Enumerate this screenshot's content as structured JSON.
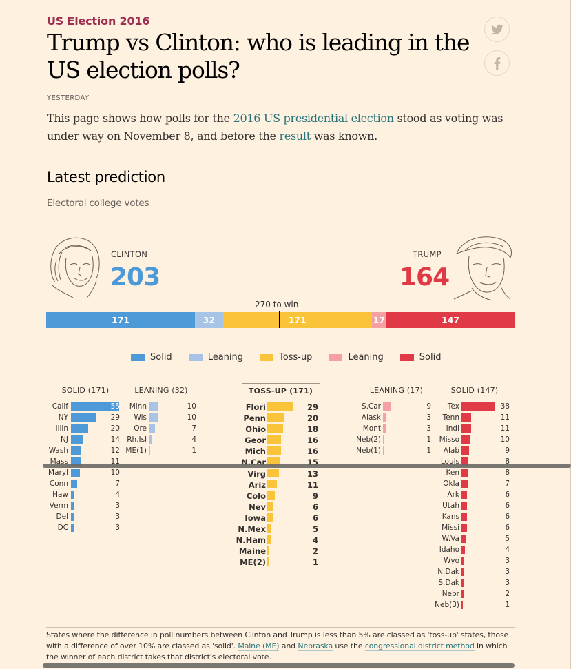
{
  "header": {
    "kicker": "US Election 2016",
    "headline": "Trump vs Clinton: who is leading in the US election polls?",
    "dateline": "YESTERDAY",
    "standfirst": {
      "part1": "This page shows how polls for the ",
      "link1": "2016 US presidential election",
      "part2": " stood as voting was under way on November 8, and before the ",
      "link2": "result",
      "part3": " was known."
    }
  },
  "social": {
    "icons": [
      "twitter-icon",
      "facebook-icon"
    ]
  },
  "section": {
    "title": "Latest prediction",
    "subtitle": "Electoral college votes"
  },
  "candidates": {
    "clinton": {
      "name": "CLINTON",
      "votes": "203",
      "color": "#4e9ad8"
    },
    "trump": {
      "name": "TRUMP",
      "votes": "164",
      "color": "#e03a46"
    }
  },
  "threshold": {
    "label": "270 to win",
    "value": 270,
    "total": 538
  },
  "bar_segments": [
    {
      "label": "171",
      "value": 171,
      "color": "#4e9ad8"
    },
    {
      "label": "32",
      "value": 32,
      "color": "#a7c4e6"
    },
    {
      "label": "171",
      "value": 171,
      "color": "#f9c33a"
    },
    {
      "label": "17",
      "value": 17,
      "color": "#f5a1a3"
    },
    {
      "label": "147",
      "value": 147,
      "color": "#e03a46"
    }
  ],
  "legend": [
    {
      "label": "Solid",
      "color": "#4e9ad8"
    },
    {
      "label": "Leaning",
      "color": "#a7c4e6"
    },
    {
      "label": "Toss-up",
      "color": "#f9c33a"
    },
    {
      "label": "Leaning",
      "color": "#f5a1a3"
    },
    {
      "label": "Solid",
      "color": "#e03a46"
    }
  ],
  "columns": {
    "clinton_solid": {
      "header": "SOLID (171)",
      "color": "#4e9ad8",
      "rows": [
        {
          "state": "Calif",
          "votes": 55
        },
        {
          "state": "NY",
          "votes": 29
        },
        {
          "state": "Illin",
          "votes": 20
        },
        {
          "state": "NJ",
          "votes": 14
        },
        {
          "state": "Wash",
          "votes": 12
        },
        {
          "state": "Mass",
          "votes": 11
        },
        {
          "state": "Maryl",
          "votes": 10
        },
        {
          "state": "Conn",
          "votes": 7
        },
        {
          "state": "Haw",
          "votes": 4
        },
        {
          "state": "Verm",
          "votes": 3
        },
        {
          "state": "Del",
          "votes": 3
        },
        {
          "state": "DC",
          "votes": 3
        }
      ]
    },
    "clinton_leaning": {
      "header": "LEANING (32)",
      "color": "#a7c4e6",
      "rows": [
        {
          "state": "Minn",
          "votes": 10
        },
        {
          "state": "Wis",
          "votes": 10
        },
        {
          "state": "Ore",
          "votes": 7
        },
        {
          "state": "Rh.Isl",
          "votes": 4
        },
        {
          "state": "ME(1)",
          "votes": 1
        }
      ]
    },
    "tossup": {
      "header": "TOSS-UP (171)",
      "color": "#f9c33a",
      "rows": [
        {
          "state": "Flori",
          "votes": 29
        },
        {
          "state": "Penn",
          "votes": 20
        },
        {
          "state": "Ohio",
          "votes": 18
        },
        {
          "state": "Geor",
          "votes": 16
        },
        {
          "state": "Mich",
          "votes": 16
        },
        {
          "state": "N.Car",
          "votes": 15
        },
        {
          "state": "Virg",
          "votes": 13
        },
        {
          "state": "Ariz",
          "votes": 11
        },
        {
          "state": "Colo",
          "votes": 9
        },
        {
          "state": "Nev",
          "votes": 6
        },
        {
          "state": "Iowa",
          "votes": 6
        },
        {
          "state": "N.Mex",
          "votes": 5
        },
        {
          "state": "N.Ham",
          "votes": 4
        },
        {
          "state": "Maine",
          "votes": 2
        },
        {
          "state": "ME(2)",
          "votes": 1
        }
      ]
    },
    "trump_leaning": {
      "header": "LEANING (17)",
      "color": "#f5a1a3",
      "rows": [
        {
          "state": "S.Car",
          "votes": 9
        },
        {
          "state": "Alask",
          "votes": 3
        },
        {
          "state": "Mont",
          "votes": 3
        },
        {
          "state": "Neb(2)",
          "votes": 1
        },
        {
          "state": "Neb(1)",
          "votes": 1
        }
      ]
    },
    "trump_solid": {
      "header": "SOLID (147)",
      "color": "#e03a46",
      "rows": [
        {
          "state": "Tex",
          "votes": 38
        },
        {
          "state": "Tenn",
          "votes": 11
        },
        {
          "state": "Indi",
          "votes": 11
        },
        {
          "state": "Misso",
          "votes": 10
        },
        {
          "state": "Alab",
          "votes": 9
        },
        {
          "state": "Louis",
          "votes": 8
        },
        {
          "state": "Ken",
          "votes": 8
        },
        {
          "state": "Okla",
          "votes": 7
        },
        {
          "state": "Ark",
          "votes": 6
        },
        {
          "state": "Utah",
          "votes": 6
        },
        {
          "state": "Kans",
          "votes": 6
        },
        {
          "state": "Missi",
          "votes": 6
        },
        {
          "state": "W.Va",
          "votes": 5
        },
        {
          "state": "Idaho",
          "votes": 4
        },
        {
          "state": "Wyo",
          "votes": 3
        },
        {
          "state": "N.Dak",
          "votes": 3
        },
        {
          "state": "S.Dak",
          "votes": 3
        },
        {
          "state": "Nebr",
          "votes": 2
        },
        {
          "state": "Neb(3)",
          "votes": 1
        }
      ]
    }
  },
  "footnote": {
    "part1": "States where the difference in poll numbers between Clinton and Trump is less than 5% are classed as 'toss-up' states, those with a difference of over 10% are classed as 'solid'. ",
    "link1": "Maine (ME)",
    "part2": " and ",
    "link2": "Nebraska",
    "part3": " use the ",
    "link3": "congressional district method",
    "part4": " in which the winner of each district takes that district's electoral vote."
  }
}
